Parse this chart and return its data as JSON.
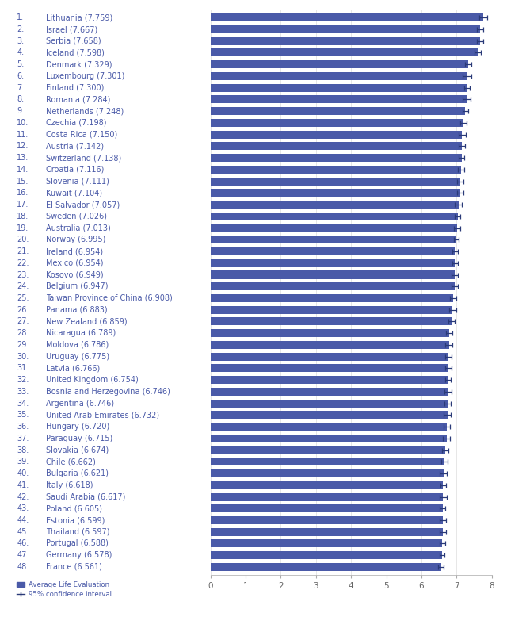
{
  "numbers": [
    "1.",
    "2.",
    "3.",
    "4.",
    "5.",
    "6.",
    "7.",
    "8.",
    "9.",
    "10.",
    "11.",
    "12.",
    "13.",
    "14.",
    "15.",
    "16.",
    "17.",
    "18.",
    "19.",
    "20.",
    "21.",
    "22.",
    "23.",
    "24.",
    "25.",
    "26.",
    "27.",
    "28.",
    "29.",
    "30.",
    "31.",
    "32.",
    "33.",
    "34.",
    "35.",
    "36.",
    "37.",
    "38.",
    "39.",
    "40.",
    "41.",
    "42.",
    "43.",
    "44.",
    "45.",
    "46.",
    "47.",
    "48."
  ],
  "names": [
    "Lithuania (7.759)",
    "Israel (7.667)",
    "Serbia (7.658)",
    "Iceland (7.598)",
    "Denmark (7.329)",
    "Luxembourg (7.301)",
    "Finland (7.300)",
    "Romania (7.284)",
    "Netherlands (7.248)",
    "Czechia (7.198)",
    "Costa Rica (7.150)",
    "Austria (7.142)",
    "Switzerland (7.138)",
    "Croatia (7.116)",
    "Slovenia (7.111)",
    "Kuwait (7.104)",
    "El Salvador (7.057)",
    "Sweden (7.026)",
    "Australia (7.013)",
    "Norway (6.995)",
    "Ireland (6.954)",
    "Mexico (6.954)",
    "Kosovo (6.949)",
    "Belgium (6.947)",
    "Taiwan Province of China (6.908)",
    "Panama (6.883)",
    "New Zealand (6.859)",
    "Nicaragua (6.789)",
    "Moldova (6.786)",
    "Uruguay (6.775)",
    "Latvia (6.766)",
    "United Kingdom (6.754)",
    "Bosnia and Herzegovina (6.746)",
    "Argentina (6.746)",
    "United Arab Emirates (6.732)",
    "Hungary (6.720)",
    "Paraguay (6.715)",
    "Slovakia (6.674)",
    "Chile (6.662)",
    "Bulgaria (6.621)",
    "Italy (6.618)",
    "Saudi Arabia (6.617)",
    "Poland (6.605)",
    "Estonia (6.599)",
    "Thailand (6.597)",
    "Portugal (6.588)",
    "Germany (6.578)",
    "France (6.561)"
  ],
  "values": [
    7.759,
    7.667,
    7.658,
    7.598,
    7.329,
    7.301,
    7.3,
    7.284,
    7.248,
    7.198,
    7.15,
    7.142,
    7.138,
    7.116,
    7.111,
    7.104,
    7.057,
    7.026,
    7.013,
    6.995,
    6.954,
    6.954,
    6.949,
    6.947,
    6.908,
    6.883,
    6.859,
    6.789,
    6.786,
    6.775,
    6.766,
    6.754,
    6.746,
    6.746,
    6.732,
    6.72,
    6.715,
    6.674,
    6.662,
    6.621,
    6.618,
    6.617,
    6.605,
    6.599,
    6.597,
    6.588,
    6.578,
    6.561
  ],
  "errors": [
    0.12,
    0.1,
    0.09,
    0.1,
    0.1,
    0.12,
    0.08,
    0.12,
    0.08,
    0.09,
    0.1,
    0.09,
    0.08,
    0.09,
    0.09,
    0.1,
    0.1,
    0.07,
    0.08,
    0.07,
    0.08,
    0.08,
    0.09,
    0.08,
    0.09,
    0.1,
    0.09,
    0.1,
    0.1,
    0.09,
    0.09,
    0.07,
    0.1,
    0.09,
    0.1,
    0.1,
    0.1,
    0.09,
    0.09,
    0.1,
    0.08,
    0.1,
    0.08,
    0.09,
    0.09,
    0.08,
    0.07,
    0.08
  ],
  "bar_color": "#4a5aa8",
  "error_color": "#2a3a78",
  "background_color": "#ffffff",
  "label_color": "#4a5aa8",
  "xlim": [
    0,
    8
  ],
  "xticks": [
    0,
    1,
    2,
    3,
    4,
    5,
    6,
    7,
    8
  ],
  "legend_label_bar": "Average Life Evaluation",
  "legend_label_err": "95% confidence interval",
  "label_fontsize": 7.0,
  "tick_fontsize": 7.5,
  "grid_color": "#dddddd"
}
